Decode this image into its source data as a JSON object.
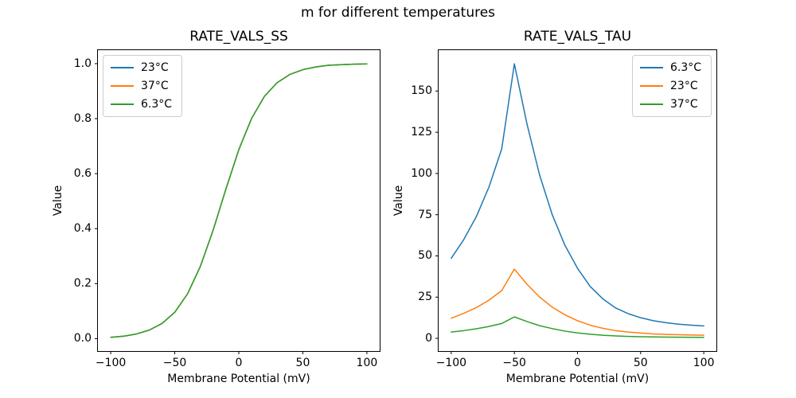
{
  "figure": {
    "suptitle": "m for different temperatures",
    "background_color": "#ffffff",
    "text_color": "#000000",
    "spine_color": "#000000"
  },
  "chart_data": [
    {
      "id": "rate-vals-ss",
      "type": "line",
      "title": "RATE_VALS_SS",
      "xlabel": "Membrane Potential (mV)",
      "ylabel": "Value",
      "xlim": [
        -110,
        110
      ],
      "ylim": [
        -0.045,
        1.049
      ],
      "grid": false,
      "legend_position": "upper left",
      "x": [
        -100,
        -90,
        -80,
        -70,
        -60,
        -50,
        -40,
        -30,
        -20,
        -10,
        0,
        10,
        20,
        30,
        40,
        50,
        60,
        70,
        80,
        90,
        100
      ],
      "series": [
        {
          "name": "23°C",
          "color": "#1f77b4",
          "values": [
            0.005,
            0.009,
            0.017,
            0.031,
            0.055,
            0.096,
            0.163,
            0.263,
            0.395,
            0.545,
            0.687,
            0.801,
            0.881,
            0.931,
            0.961,
            0.978,
            0.988,
            0.994,
            0.996,
            0.998,
            0.999
          ]
        },
        {
          "name": "37°C",
          "color": "#ff7f0e",
          "values": [
            0.005,
            0.009,
            0.017,
            0.031,
            0.055,
            0.096,
            0.163,
            0.263,
            0.395,
            0.545,
            0.687,
            0.801,
            0.881,
            0.931,
            0.961,
            0.978,
            0.988,
            0.994,
            0.996,
            0.998,
            0.999
          ]
        },
        {
          "name": "6.3°C",
          "color": "#2ca02c",
          "values": [
            0.005,
            0.009,
            0.017,
            0.031,
            0.055,
            0.096,
            0.163,
            0.263,
            0.395,
            0.545,
            0.687,
            0.801,
            0.881,
            0.931,
            0.961,
            0.978,
            0.988,
            0.994,
            0.996,
            0.998,
            0.999
          ]
        }
      ],
      "x_ticks": [
        {
          "v": -100,
          "label": "−100"
        },
        {
          "v": -50,
          "label": "−50"
        },
        {
          "v": 0,
          "label": "0"
        },
        {
          "v": 50,
          "label": "50"
        },
        {
          "v": 100,
          "label": "100"
        }
      ],
      "y_ticks": [
        {
          "v": 0.0,
          "label": "0.0"
        },
        {
          "v": 0.2,
          "label": "0.2"
        },
        {
          "v": 0.4,
          "label": "0.4"
        },
        {
          "v": 0.6,
          "label": "0.6"
        },
        {
          "v": 0.8,
          "label": "0.8"
        },
        {
          "v": 1.0,
          "label": "1.0"
        }
      ]
    },
    {
      "id": "rate-vals-tau",
      "type": "line",
      "title": "RATE_VALS_TAU",
      "xlabel": "Membrane Potential (mV)",
      "ylabel": "Value",
      "xlim": [
        -110,
        110
      ],
      "ylim": [
        -7.7,
        174.8
      ],
      "grid": false,
      "legend_position": "upper right",
      "x": [
        -100,
        -90,
        -80,
        -70,
        -60,
        -50,
        -40,
        -30,
        -20,
        -10,
        0,
        10,
        20,
        30,
        40,
        50,
        60,
        70,
        80,
        90,
        100
      ],
      "series": [
        {
          "name": "6.3°C",
          "color": "#1f77b4",
          "values": [
            48.5,
            60,
            74,
            92,
            115,
            166.5,
            130,
            99,
            75,
            56.5,
            42.5,
            31.5,
            24,
            18.5,
            15,
            12.5,
            10.7,
            9.5,
            8.6,
            8.0,
            7.5
          ]
        },
        {
          "name": "23°C",
          "color": "#ff7f0e",
          "values": [
            12.2,
            15.2,
            18.7,
            23.2,
            29.0,
            42.0,
            32.8,
            25.0,
            18.9,
            14.3,
            10.7,
            8.0,
            6.1,
            4.7,
            3.8,
            3.2,
            2.7,
            2.4,
            2.2,
            2.0,
            1.9
          ]
        },
        {
          "name": "37°C",
          "color": "#2ca02c",
          "values": [
            3.8,
            4.7,
            5.8,
            7.2,
            9.0,
            13.0,
            10.2,
            7.7,
            5.9,
            4.4,
            3.3,
            2.5,
            1.9,
            1.45,
            1.17,
            0.98,
            0.84,
            0.74,
            0.67,
            0.63,
            0.59
          ]
        }
      ],
      "x_ticks": [
        {
          "v": -100,
          "label": "−100"
        },
        {
          "v": -50,
          "label": "−50"
        },
        {
          "v": 0,
          "label": "0"
        },
        {
          "v": 50,
          "label": "50"
        },
        {
          "v": 100,
          "label": "100"
        }
      ],
      "y_ticks": [
        {
          "v": 0,
          "label": "0"
        },
        {
          "v": 25,
          "label": "25"
        },
        {
          "v": 50,
          "label": "50"
        },
        {
          "v": 75,
          "label": "75"
        },
        {
          "v": 100,
          "label": "100"
        },
        {
          "v": 125,
          "label": "125"
        },
        {
          "v": 150,
          "label": "150"
        }
      ]
    }
  ]
}
